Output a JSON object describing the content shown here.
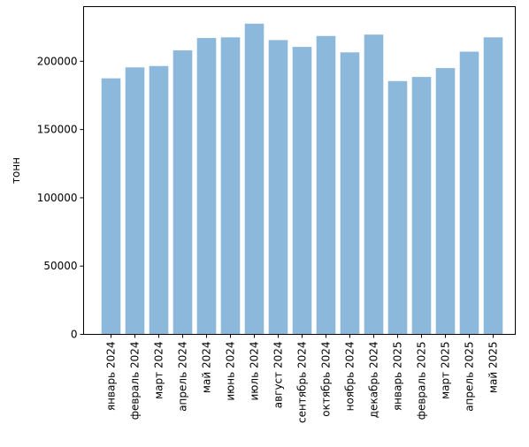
{
  "chart_data": {
    "type": "bar",
    "title": "",
    "xlabel": "",
    "ylabel": "тонн",
    "ylim": [
      0,
      240000
    ],
    "yticks": [
      0,
      50000,
      100000,
      150000,
      200000
    ],
    "ytick_labels": [
      "0",
      "50000",
      "100000",
      "150000",
      "200000"
    ],
    "grid": false,
    "legend": "none",
    "bar_color": "#8cb9db",
    "categories": [
      "январь 2024",
      "февраль 2024",
      "март 2024",
      "апрель 2024",
      "май 2024",
      "июнь 2024",
      "июль 2024",
      "август 2024",
      "сентябрь 2024",
      "октябрь 2024",
      "ноябрь 2024",
      "декабрь 2024",
      "январь 2025",
      "февраль 2025",
      "март 2025",
      "апрель 2025",
      "май 2025"
    ],
    "values": [
      187500,
      195500,
      196500,
      208000,
      217000,
      217500,
      227500,
      215500,
      210500,
      218500,
      206500,
      219500,
      185500,
      188500,
      195000,
      207000,
      217500
    ]
  }
}
